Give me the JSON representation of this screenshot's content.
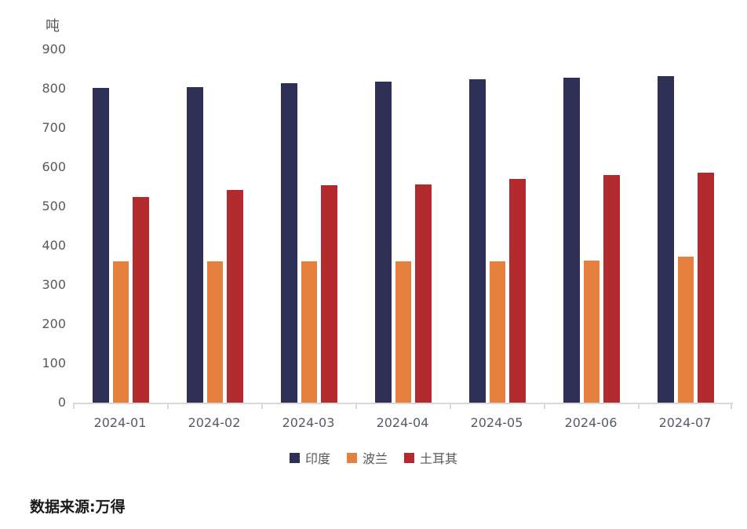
{
  "header": {
    "unit_label": "吨"
  },
  "footer": {
    "source_note": "数据来源:万得"
  },
  "style": {
    "axis_color": "#D9D9D9",
    "tick_text_color": "#595959",
    "footer_text_color": "#1A1A1A"
  },
  "chart_data": {
    "type": "bar",
    "categories": [
      "2024-01",
      "2024-02",
      "2024-03",
      "2024-04",
      "2024-05",
      "2024-06",
      "2024-07"
    ],
    "series": [
      {
        "name": "印度",
        "color": "#2E3055",
        "values": [
          803,
          804,
          814,
          819,
          824,
          829,
          833
        ]
      },
      {
        "name": "波兰",
        "color": "#E5803F",
        "values": [
          360,
          360,
          360,
          360,
          360,
          363,
          373
        ]
      },
      {
        "name": "土耳其",
        "color": "#B2292E",
        "values": [
          524,
          542,
          554,
          557,
          571,
          581,
          586
        ]
      }
    ],
    "xlabel": "",
    "ylabel": "吨",
    "ylim": [
      0,
      900
    ],
    "ytick_step": 100,
    "grid": false,
    "legend_position": "bottom"
  }
}
